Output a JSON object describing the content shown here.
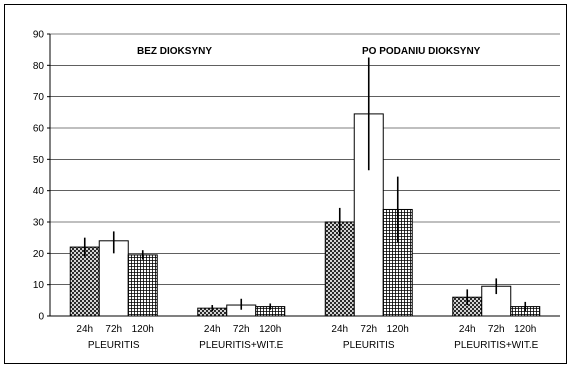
{
  "chart_data": {
    "type": "bar",
    "title": "",
    "xlabel": "",
    "ylabel": "",
    "ylim": [
      0,
      90
    ],
    "yticks": [
      0,
      10,
      20,
      30,
      40,
      50,
      60,
      70,
      80,
      90
    ],
    "grid": true,
    "legend": "none",
    "annotations": [
      "BEZ DIOKSYNY",
      "PO PODANIU DIOKSYNY"
    ],
    "bar_fill_patterns": {
      "24h": "crosshatch",
      "72h": "white",
      "120h": "grid"
    },
    "groups": [
      {
        "label": "PLEURITIS",
        "condition": "BEZ DIOKSYNY",
        "bars": [
          {
            "label": "24h",
            "value": 22,
            "err_low": 19,
            "err_high": 25
          },
          {
            "label": "72h",
            "value": 24,
            "err_low": 20,
            "err_high": 27
          },
          {
            "label": "120h",
            "value": 19.5,
            "err_low": 18,
            "err_high": 21
          }
        ]
      },
      {
        "label": "PLEURITIS+WIT.E",
        "condition": "BEZ DIOKSYNY",
        "bars": [
          {
            "label": "24h",
            "value": 2.5,
            "err_low": 1.5,
            "err_high": 3.5
          },
          {
            "label": "72h",
            "value": 3.5,
            "err_low": 2,
            "err_high": 5.5
          },
          {
            "label": "120h",
            "value": 3,
            "err_low": 2,
            "err_high": 4
          }
        ]
      },
      {
        "label": "PLEURITIS",
        "condition": "PO PODANIU DIOKSYNY",
        "bars": [
          {
            "label": "24h",
            "value": 30,
            "err_low": 25.5,
            "err_high": 34.5
          },
          {
            "label": "72h",
            "value": 64.5,
            "err_low": 46.5,
            "err_high": 82.5
          },
          {
            "label": "120h",
            "value": 34,
            "err_low": 23.5,
            "err_high": 44.5
          }
        ]
      },
      {
        "label": "PLEURITIS+WIT.E",
        "condition": "PO PODANIU DIOKSYNY",
        "bars": [
          {
            "label": "24h",
            "value": 6,
            "err_low": 3.5,
            "err_high": 8.5
          },
          {
            "label": "72h",
            "value": 9.5,
            "err_low": 7,
            "err_high": 12
          },
          {
            "label": "120h",
            "value": 3,
            "err_low": 1.5,
            "err_high": 4.5
          }
        ]
      }
    ]
  }
}
